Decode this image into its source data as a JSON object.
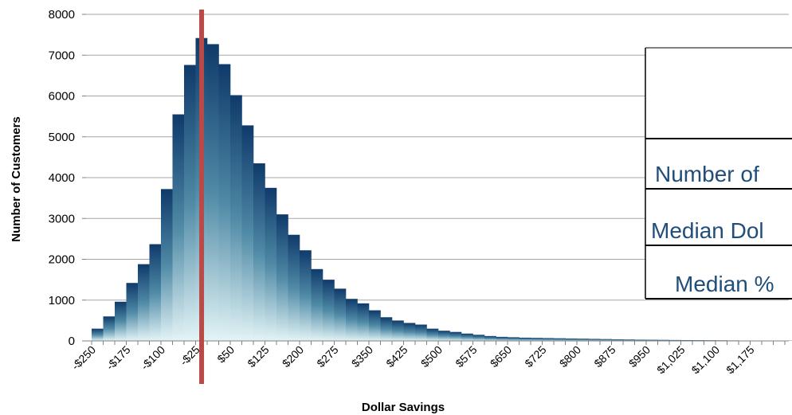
{
  "chart_data": {
    "type": "bar",
    "title": "",
    "xlabel": "Dollar Savings",
    "ylabel": "Number of Customers",
    "ylim": [
      0,
      8000
    ],
    "yticks": [
      0,
      1000,
      2000,
      3000,
      4000,
      5000,
      6000,
      7000,
      8000
    ],
    "grid": true,
    "bin_width": 25,
    "x_start": -250,
    "x_tick_labels": [
      "-$250",
      "-$175",
      "-$100",
      "-$25",
      "$50",
      "$125",
      "$200",
      "$275",
      "$350",
      "$425",
      "$500",
      "$575",
      "$650",
      "$725",
      "$800",
      "$875",
      "$950",
      "$1,025",
      "$1,100",
      "$1,175"
    ],
    "values": [
      300,
      600,
      960,
      1420,
      1880,
      2370,
      3720,
      5550,
      6760,
      7420,
      7270,
      6780,
      6020,
      5280,
      4350,
      3750,
      3100,
      2600,
      2220,
      1760,
      1500,
      1280,
      1030,
      920,
      750,
      580,
      500,
      440,
      400,
      300,
      250,
      220,
      180,
      150,
      120,
      100,
      90,
      80,
      75,
      70,
      65,
      60,
      55,
      50,
      45,
      40,
      35,
      30,
      28,
      25,
      22,
      20,
      18,
      16,
      14,
      12,
      10,
      10,
      8,
      8,
      6,
      6,
      5,
      5,
      4,
      4,
      3,
      3,
      2,
      2,
      2,
      1,
      1,
      1,
      1,
      1,
      1
    ],
    "marker_line": {
      "x": -12,
      "color": "#b94a48"
    },
    "overlay_table": {
      "rows": [
        "",
        "Number of",
        "Median Dol",
        "Median %"
      ]
    }
  }
}
